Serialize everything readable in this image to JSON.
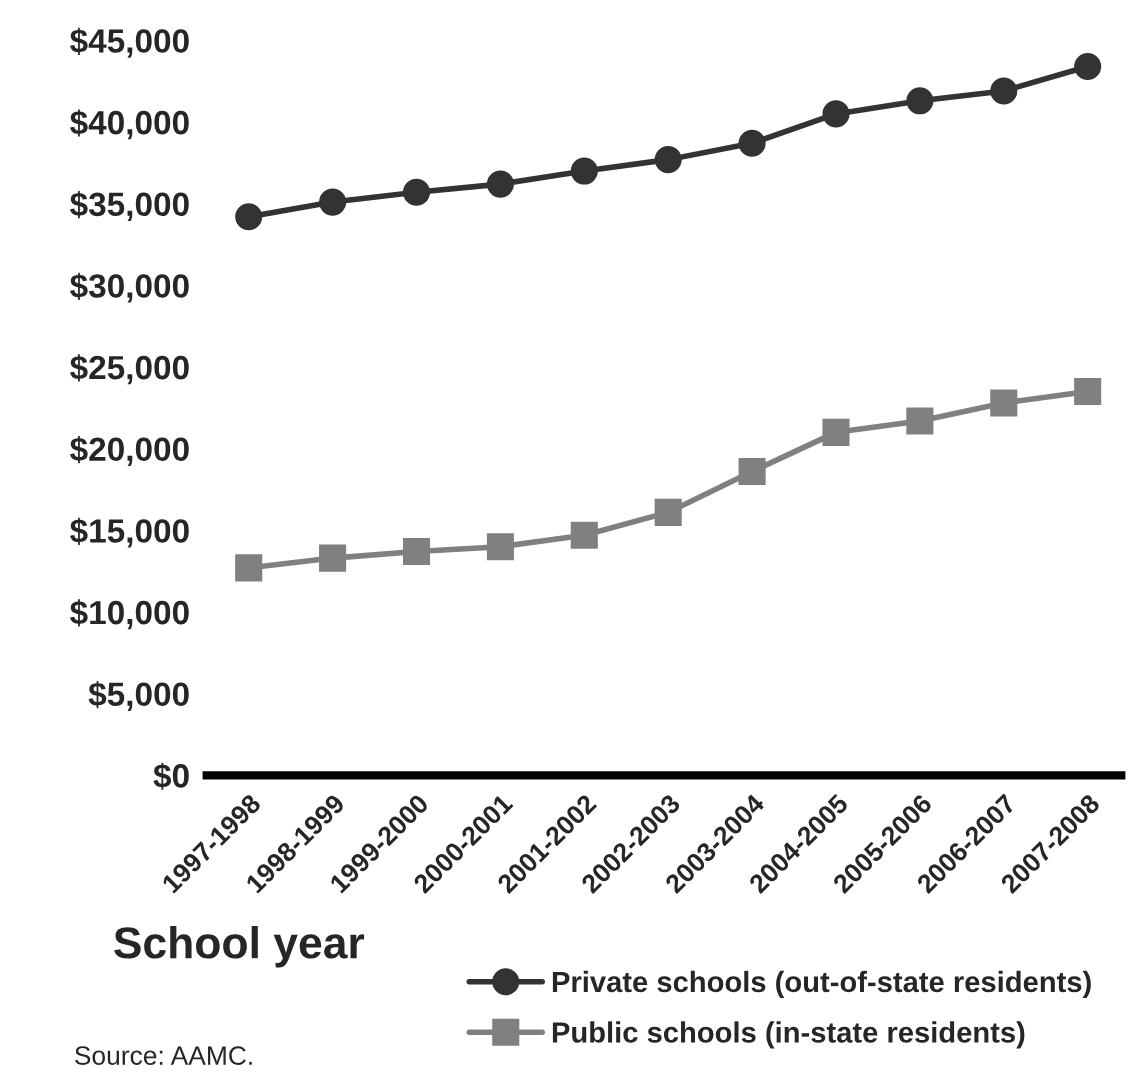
{
  "chart_data": {
    "type": "line",
    "xlabel": "School year",
    "categories": [
      "1997-1998",
      "1998-1999",
      "1999-2000",
      "2000-2001",
      "2001-2002",
      "2002-2003",
      "2003-2004",
      "2004-2005",
      "2005-2006",
      "2006-2007",
      "2007-2008"
    ],
    "series": [
      {
        "name": "Private schools (out-of-state residents)",
        "color": "#333333",
        "marker": "circle",
        "values": [
          34200,
          35100,
          35700,
          36200,
          37000,
          37700,
          38700,
          40500,
          41300,
          41900,
          43400
        ]
      },
      {
        "name": "Public schools (in-state residents)",
        "color": "#808080",
        "marker": "square",
        "values": [
          12700,
          13300,
          13700,
          14000,
          14700,
          16100,
          18600,
          21000,
          21700,
          22800,
          23500
        ]
      }
    ],
    "ylim": [
      0,
      45000
    ],
    "yticks": [
      {
        "value": 0,
        "label": "$0"
      },
      {
        "value": 5000,
        "label": "$5,000"
      },
      {
        "value": 10000,
        "label": "$10,000"
      },
      {
        "value": 15000,
        "label": "$15,000"
      },
      {
        "value": 20000,
        "label": "$20,000"
      },
      {
        "value": 25000,
        "label": "$25,000"
      },
      {
        "value": 30000,
        "label": "$30,000"
      },
      {
        "value": 35000,
        "label": "$35,000"
      },
      {
        "value": 40000,
        "label": "$40,000"
      },
      {
        "value": 45000,
        "label": "$45,000"
      }
    ],
    "grid": false,
    "legend": "bottom",
    "line_style": "solid",
    "annotations": [
      "Source: AAMC."
    ]
  }
}
